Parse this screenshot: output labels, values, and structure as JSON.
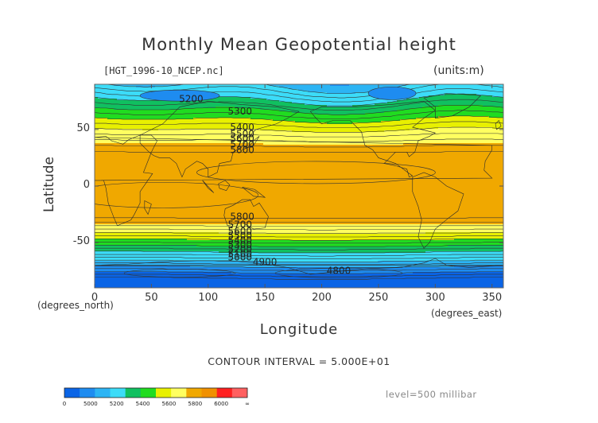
{
  "chart_data": {
    "type": "heatmap",
    "title": "Monthly Mean Geopotential height",
    "source_label": "[HGT_1996-10_NCEP.nc]",
    "units_label": "(units:m)",
    "xlabel": "Longitude",
    "ylabel": "Latitude",
    "x_unit_label": "(degrees_east)",
    "y_unit_label": "(degrees_north)",
    "xlim": [
      0,
      360
    ],
    "ylim": [
      -90,
      90
    ],
    "x_ticks": [
      0,
      50,
      100,
      150,
      200,
      250,
      300,
      350
    ],
    "y_ticks": [
      50,
      0,
      -50
    ],
    "contour_interval_label": "CONTOUR INTERVAL = 5.000E+01",
    "level_label": "level=500 millibar",
    "contour_labels": [
      {
        "text": "5200",
        "lon": 85,
        "lat": 77
      },
      {
        "text": "5300",
        "lon": 128,
        "lat": 66
      },
      {
        "text": "5400",
        "lon": 130,
        "lat": 52
      },
      {
        "text": "5500",
        "lon": 130,
        "lat": 46
      },
      {
        "text": "5600",
        "lon": 130,
        "lat": 42
      },
      {
        "text": "5700",
        "lon": 130,
        "lat": 37
      },
      {
        "text": "5800",
        "lon": 130,
        "lat": 32
      },
      {
        "text": "5800",
        "lon": 130,
        "lat": -27
      },
      {
        "text": "5700",
        "lon": 128,
        "lat": -34
      },
      {
        "text": "5600",
        "lon": 128,
        "lat": -40
      },
      {
        "text": "5500",
        "lon": 128,
        "lat": -44
      },
      {
        "text": "5400",
        "lon": 128,
        "lat": -48
      },
      {
        "text": "5300",
        "lon": 128,
        "lat": -52
      },
      {
        "text": "5200",
        "lon": 128,
        "lat": -56
      },
      {
        "text": "5100",
        "lon": 128,
        "lat": -60
      },
      {
        "text": "5000",
        "lon": 128,
        "lat": -63
      },
      {
        "text": "4900",
        "lon": 150,
        "lat": -67
      },
      {
        "text": "4800",
        "lon": 215,
        "lat": -75
      }
    ],
    "colorbar": {
      "labels": [
        "0",
        "5000",
        "5200",
        "5400",
        "5600",
        "5800",
        "6000",
        "∞"
      ],
      "colors": [
        "#0a64e6",
        "#1e8cf0",
        "#2cb4f4",
        "#3cdcf8",
        "#10c060",
        "#20dc20",
        "#e8f000",
        "#ffff60",
        "#f0a800",
        "#f09000",
        "#ff2020",
        "#ff6060"
      ]
    }
  }
}
